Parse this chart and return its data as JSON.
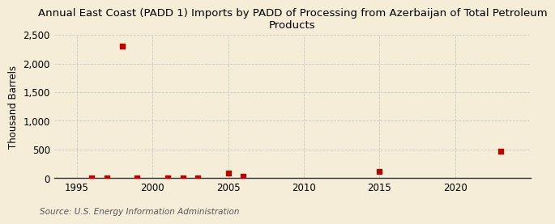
{
  "title": "Annual East Coast (PADD 1) Imports by PADD of Processing from Azerbaijan of Total Petroleum\nProducts",
  "ylabel": "Thousand Barrels",
  "source": "Source: U.S. Energy Information Administration",
  "background_color": "#f5edd8",
  "plot_bg_color": "#f5edd8",
  "data_x": [
    1996,
    1997,
    1998,
    1999,
    2001,
    2002,
    2003,
    2005,
    2006,
    2015,
    2023
  ],
  "data_y": [
    5,
    5,
    2310,
    5,
    5,
    5,
    5,
    90,
    40,
    120,
    470
  ],
  "marker_color": "#bb0000",
  "marker_size": 4,
  "xlim": [
    1993.5,
    2025
  ],
  "ylim": [
    0,
    2500
  ],
  "yticks": [
    0,
    500,
    1000,
    1500,
    2000,
    2500
  ],
  "xticks": [
    1995,
    2000,
    2005,
    2010,
    2015,
    2020
  ],
  "grid_color": "#c8c8c8",
  "title_fontsize": 9.5,
  "axis_fontsize": 8.5,
  "source_fontsize": 7.5
}
